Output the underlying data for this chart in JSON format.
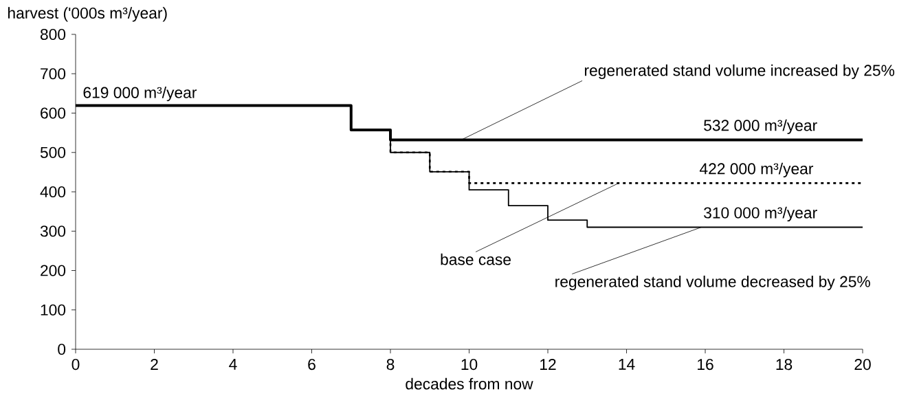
{
  "chart_data": {
    "type": "step",
    "xlabel": "decades from now",
    "ylabel": "harvest ('000s m³/year)",
    "xlim": [
      0,
      20
    ],
    "xticks": [
      0,
      2,
      4,
      6,
      8,
      10,
      12,
      14,
      16,
      18,
      20
    ],
    "ylim": [
      0,
      800
    ],
    "yticks": [
      0,
      100,
      200,
      300,
      400,
      500,
      600,
      700,
      800
    ],
    "grid": false,
    "marker": "none",
    "series": [
      {
        "x": [
          0,
          7,
          8,
          9,
          10,
          11,
          12,
          13,
          20
        ],
        "values": [
          619,
          557,
          500,
          451,
          405,
          365,
          328,
          310,
          310
        ],
        "color": "#000000",
        "line_style": "solid"
      },
      {
        "x": [
          0,
          7,
          8,
          9,
          10,
          20
        ],
        "values": [
          619,
          557,
          500,
          451,
          422,
          422
        ],
        "color": "#000000",
        "line_style": "dotted"
      },
      {
        "x": [
          0,
          7,
          8,
          20
        ],
        "values": [
          619,
          557,
          532,
          532
        ],
        "color": "#000000",
        "line_style": "solid"
      }
    ],
    "annotations": [
      {
        "text": "619 000 m³/year",
        "x": 0,
        "y": 619
      },
      {
        "text": "532 000 m³/year",
        "x": 17.4,
        "y": 532
      },
      {
        "text": "422 000 m³/year",
        "x": 17.3,
        "y": 422
      },
      {
        "text": "310 000 m³/year",
        "x": 17.4,
        "y": 310
      },
      {
        "text": "regenerated stand volume increased by 25%",
        "x": 9.8,
        "y": 532
      },
      {
        "text": "base case",
        "x": 13.8,
        "y": 422
      },
      {
        "text": "regenerated stand volume decreased by 25%",
        "x": 15.9,
        "y": 310
      }
    ]
  }
}
